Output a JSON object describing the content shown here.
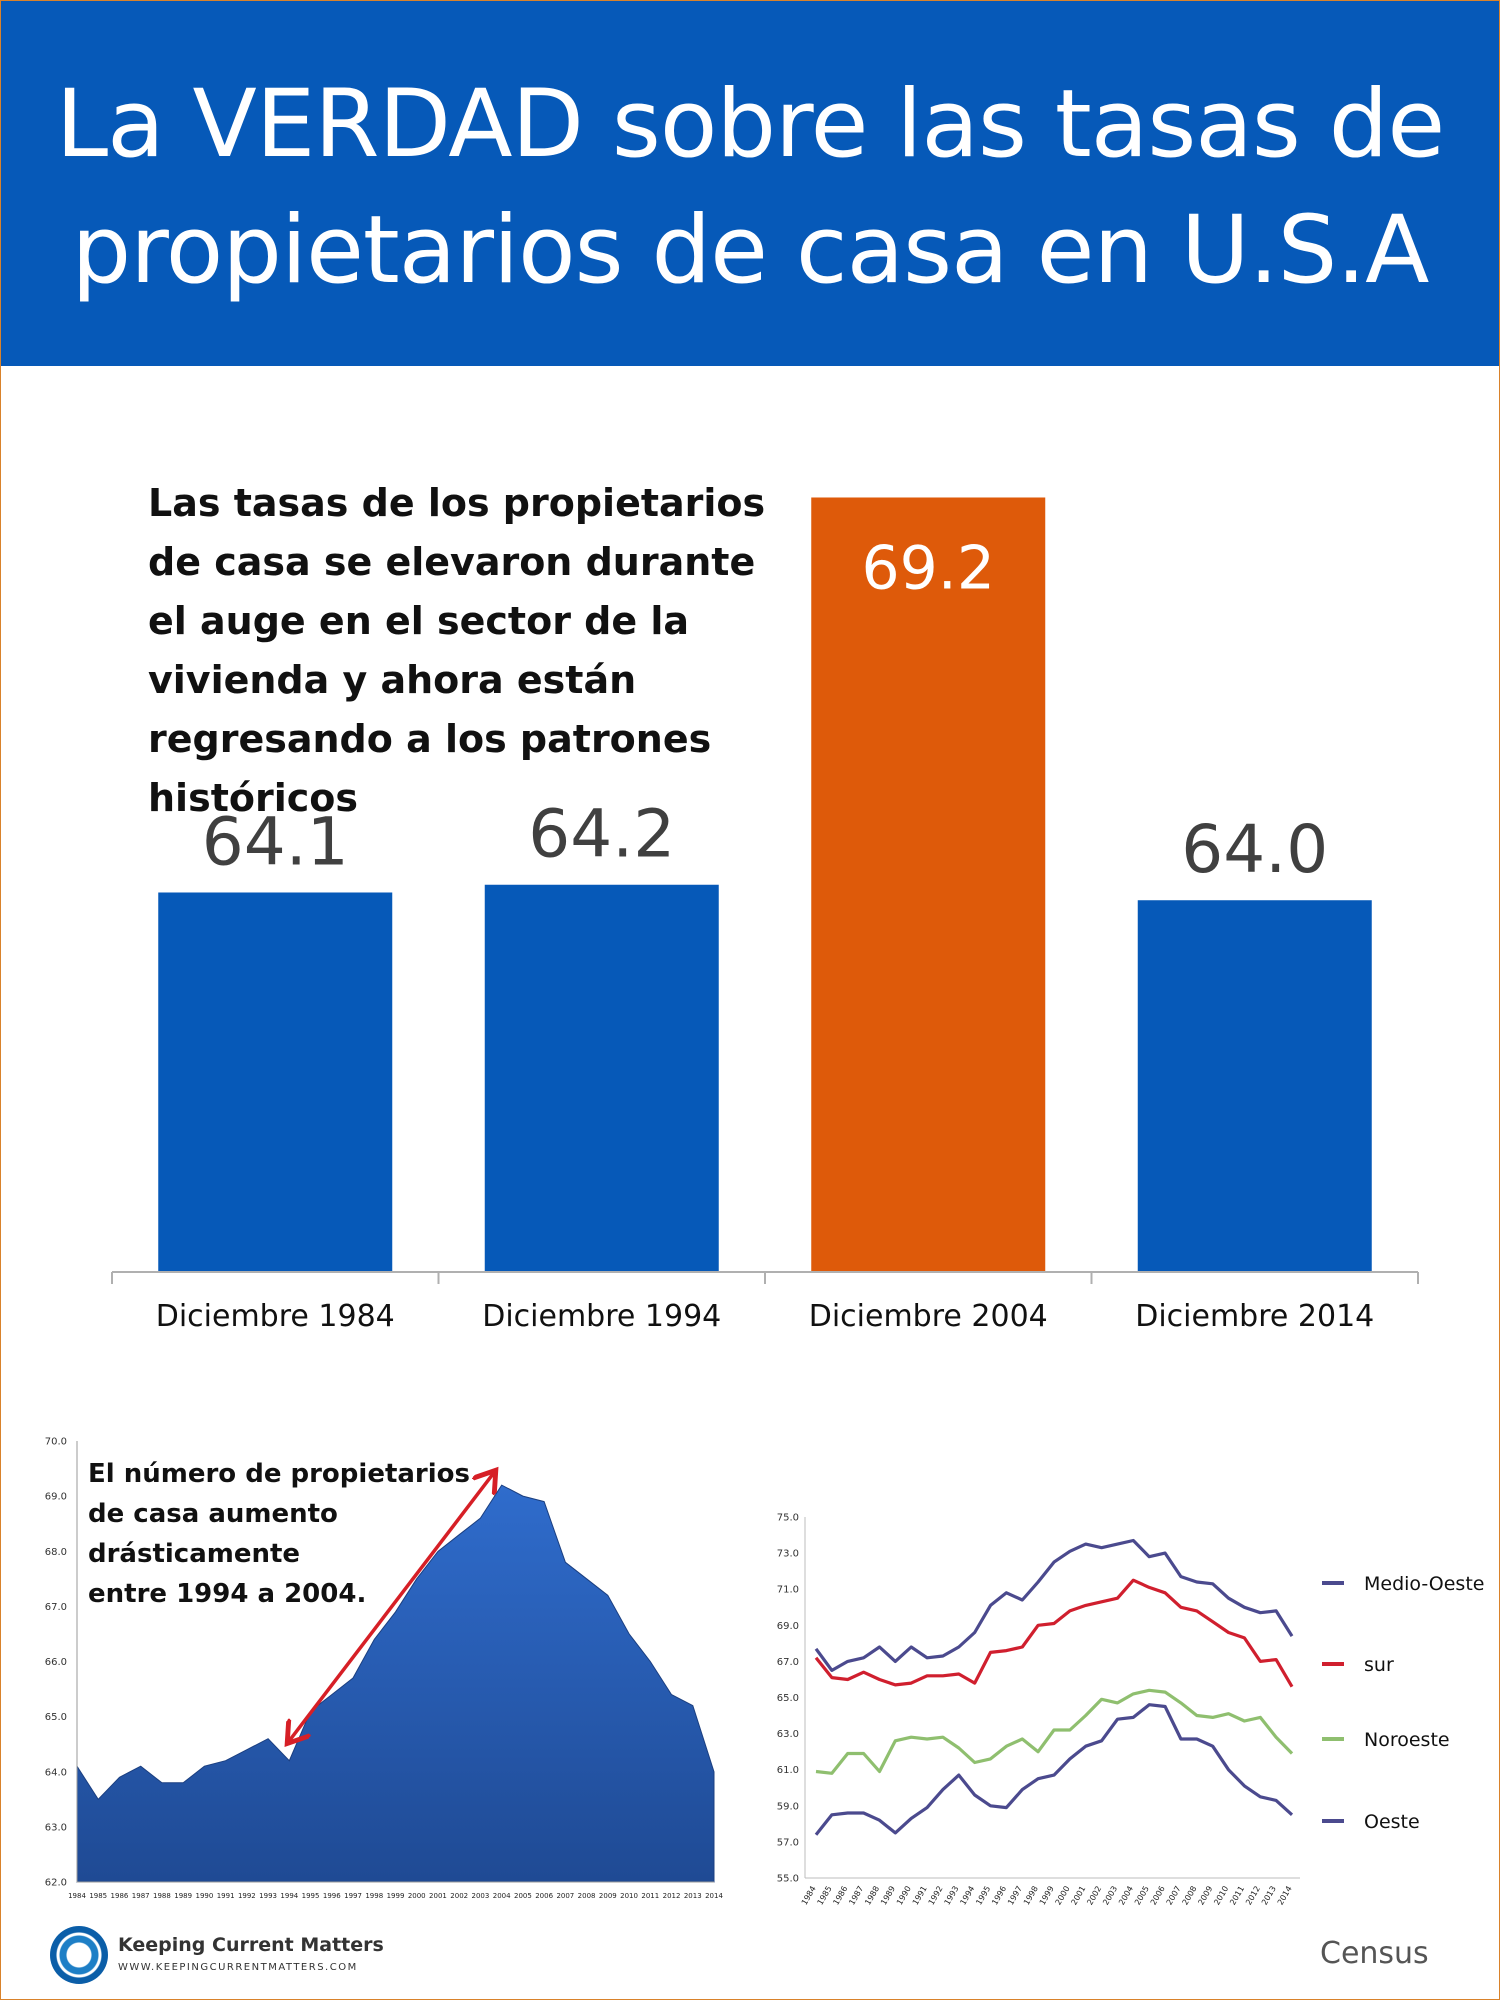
{
  "header": {
    "title_line1": "La VERDAD sobre las tasas de",
    "title_line2": "propietarios de casa en U.S.A",
    "background": "#0659b8"
  },
  "intro_text": "Las tasas de los propietarios de casa se elevaron durante el auge en el sector de la vivienda y ahora están regresando a los patrones históricos",
  "footer": {
    "brand_name": "Keeping Current Matters",
    "brand_url": "WWW.KEEPINGCURRENTMATTERS.COM",
    "source": "Census"
  },
  "chart_data": [
    {
      "type": "bar",
      "categories": [
        "Diciembre 1984",
        "Diciembre 1994",
        "Diciembre 2004",
        "Diciembre 2014"
      ],
      "values": [
        64.1,
        64.2,
        69.2,
        64.0
      ],
      "data_labels": [
        "64.1",
        "64.2",
        "69.2",
        "64.0"
      ],
      "colors": [
        "#0659b8",
        "#0659b8",
        "#de5a0a",
        "#0659b8"
      ],
      "highlight_label_color": "#ffffff",
      "label_color": "#404040",
      "ylim": [
        59.2,
        69.4
      ],
      "grid": false
    },
    {
      "type": "area",
      "x": [
        "1984",
        "1985",
        "1986",
        "1987",
        "1988",
        "1989",
        "1990",
        "1991",
        "1992",
        "1993",
        "1994",
        "1995",
        "1996",
        "1997",
        "1998",
        "1999",
        "2000",
        "2001",
        "2002",
        "2003",
        "2004",
        "2005",
        "2006",
        "2007",
        "2008",
        "2009",
        "2010",
        "2011",
        "2012",
        "2013",
        "2014"
      ],
      "values": [
        64.1,
        63.5,
        63.9,
        64.1,
        63.8,
        63.8,
        64.1,
        64.2,
        64.4,
        64.6,
        64.2,
        65.1,
        65.4,
        65.7,
        66.4,
        66.9,
        67.5,
        68.0,
        68.3,
        68.6,
        69.2,
        69.0,
        68.9,
        67.8,
        67.5,
        67.2,
        66.5,
        66.0,
        65.4,
        65.2,
        64.0
      ],
      "ylim": [
        62.0,
        70.0
      ],
      "yticks": [
        "62.0",
        "63.0",
        "64.0",
        "65.0",
        "66.0",
        "67.0",
        "68.0",
        "69.0",
        "70.0"
      ],
      "annotation": "El número de propietarios de casa aumento drásticamente entre 1994 a 2004.",
      "annotation_lines": [
        "El número de propietarios",
        "de casa aumento",
        "drásticamente",
        "entre 1994 a 2004."
      ],
      "arrow_from_year": "1994",
      "arrow_to_year": "2004",
      "arrow_color": "#d61f26",
      "fill_top": "#2f6ccc",
      "fill_bottom": "#1f4a94",
      "grid": false
    },
    {
      "type": "line",
      "x": [
        "1984",
        "1985",
        "1986",
        "1987",
        "1988",
        "1989",
        "1990",
        "1991",
        "1992",
        "1993",
        "1994",
        "1995",
        "1996",
        "1997",
        "1998",
        "1999",
        "2000",
        "2001",
        "2002",
        "2003",
        "2004",
        "2005",
        "2006",
        "2007",
        "2008",
        "2009",
        "2010",
        "2011",
        "2012",
        "2013",
        "2014"
      ],
      "ylim": [
        55.0,
        75.0
      ],
      "yticks": [
        "55.0",
        "57.0",
        "59.0",
        "61.0",
        "63.0",
        "65.0",
        "67.0",
        "69.0",
        "71.0",
        "73.0",
        "75.0"
      ],
      "legend_position": "right",
      "series": [
        {
          "name": "Medio-Oeste",
          "color": "#4b4a8e",
          "values": [
            67.7,
            66.5,
            67.0,
            67.2,
            67.8,
            67.0,
            67.8,
            67.2,
            67.3,
            67.8,
            68.6,
            70.1,
            70.8,
            70.4,
            71.4,
            72.5,
            73.1,
            73.5,
            73.3,
            73.5,
            73.7,
            72.8,
            73.0,
            71.7,
            71.4,
            71.3,
            70.5,
            70.0,
            69.7,
            69.8,
            68.4
          ]
        },
        {
          "name": "sur",
          "color": "#d01f2e",
          "values": [
            67.2,
            66.1,
            66.0,
            66.4,
            66.0,
            65.7,
            65.8,
            66.2,
            66.2,
            66.3,
            65.8,
            67.5,
            67.6,
            67.8,
            69.0,
            69.1,
            69.8,
            70.1,
            70.3,
            70.5,
            71.5,
            71.1,
            70.8,
            70.0,
            69.8,
            69.2,
            68.6,
            68.3,
            67.0,
            67.1,
            65.6
          ]
        },
        {
          "name": "Noroeste",
          "color": "#8fbf6f",
          "values": [
            60.9,
            60.8,
            61.9,
            61.9,
            60.9,
            62.6,
            62.8,
            62.7,
            62.8,
            62.2,
            61.4,
            61.6,
            62.3,
            62.7,
            62.0,
            63.2,
            63.2,
            64.0,
            64.9,
            64.7,
            65.2,
            65.4,
            65.3,
            64.7,
            64.0,
            63.9,
            64.1,
            63.7,
            63.9,
            62.8,
            61.9
          ]
        },
        {
          "name": "Oeste",
          "color": "#4b4a8e",
          "values": [
            57.4,
            58.5,
            58.6,
            58.6,
            58.2,
            57.5,
            58.3,
            58.9,
            59.9,
            60.7,
            59.6,
            59.0,
            58.9,
            59.9,
            60.5,
            60.7,
            61.6,
            62.3,
            62.6,
            63.8,
            63.9,
            64.6,
            64.5,
            62.7,
            62.7,
            62.3,
            61.0,
            60.1,
            59.5,
            59.3,
            58.5
          ]
        }
      ],
      "grid": false
    }
  ]
}
